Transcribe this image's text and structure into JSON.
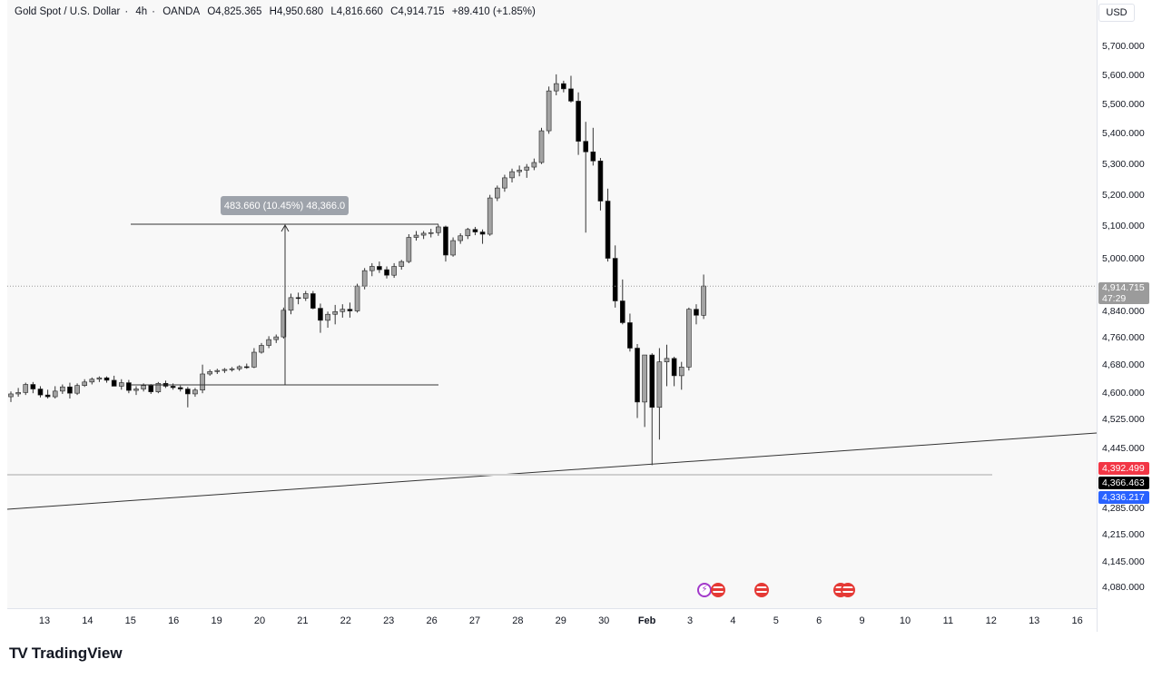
{
  "header": {
    "symbol": "Gold Spot / U.S. Dollar",
    "sep1": "·",
    "interval": "4h",
    "sep2": "·",
    "broker": "OANDA",
    "open": "O4,825.365",
    "high": "H4,950.680",
    "low": "L4,816.660",
    "close": "C4,914.715",
    "change": "+89.410 (+1.85%)"
  },
  "currency": "USD",
  "price_ticks": [
    "5,700.000",
    "5,600.000",
    "5,500.000",
    "5,400.000",
    "5,300.000",
    "5,200.000",
    "5,100.000",
    "5,000.000",
    "4,840.000",
    "4,760.000",
    "4,680.000",
    "4,600.000",
    "4,525.000",
    "4,445.000",
    "4,285.000",
    "4,215.000",
    "4,145.000",
    "4,080.000"
  ],
  "current_price": {
    "price": "4,914.715",
    "countdown": "47:29",
    "color": "#9b9b9b"
  },
  "level_badges": [
    {
      "label": "4,392.499",
      "color": "#f23645"
    },
    {
      "label": "4,366.463",
      "color": "#000000"
    },
    {
      "label": "4,336.217",
      "color": "#2962ff"
    }
  ],
  "time_ticks": [
    {
      "label": "13"
    },
    {
      "label": "14"
    },
    {
      "label": "15"
    },
    {
      "label": "16"
    },
    {
      "label": "19"
    },
    {
      "label": "20"
    },
    {
      "label": "21"
    },
    {
      "label": "22"
    },
    {
      "label": "23"
    },
    {
      "label": "26"
    },
    {
      "label": "27"
    },
    {
      "label": "28"
    },
    {
      "label": "29"
    },
    {
      "label": "30"
    },
    {
      "label": "Feb",
      "month": true
    },
    {
      "label": "3"
    },
    {
      "label": "4"
    },
    {
      "label": "5"
    },
    {
      "label": "6"
    },
    {
      "label": "9"
    },
    {
      "label": "10"
    },
    {
      "label": "11"
    },
    {
      "label": "12"
    },
    {
      "label": "13"
    },
    {
      "label": "16"
    }
  ],
  "measure": {
    "label": "483.660 (10.45%) 48,366.0"
  },
  "events": [
    {
      "icon": "lightning-event-icon"
    },
    {
      "icon": "us-flag-event-icon"
    },
    {
      "icon": "us-flag-event-icon"
    },
    {
      "icon": "us-flag-event-icon"
    },
    {
      "icon": "us-flag-event-icon"
    }
  ],
  "footer": {
    "brand": "TradingView"
  },
  "colors": {
    "up": "#a3a3a3",
    "down": "#000000",
    "wick": "#333333",
    "background": "#f8f8f8"
  },
  "chart_data": {
    "type": "candlestick",
    "title": "",
    "ylim": [
      4000,
      5800
    ],
    "y_scale": "log",
    "grid": false,
    "candles": [
      [
        4590,
        4605,
        4575,
        4598
      ],
      [
        4598,
        4615,
        4590,
        4602
      ],
      [
        4602,
        4630,
        4595,
        4625
      ],
      [
        4625,
        4632,
        4600,
        4612
      ],
      [
        4612,
        4620,
        4588,
        4595
      ],
      [
        4595,
        4610,
        4585,
        4590
      ],
      [
        4590,
        4620,
        4585,
        4606
      ],
      [
        4606,
        4625,
        4598,
        4618
      ],
      [
        4618,
        4630,
        4585,
        4600
      ],
      [
        4600,
        4628,
        4595,
        4622
      ],
      [
        4622,
        4640,
        4618,
        4632
      ],
      [
        4632,
        4645,
        4625,
        4640
      ],
      [
        4640,
        4648,
        4632,
        4644
      ],
      [
        4644,
        4648,
        4630,
        4637
      ],
      [
        4637,
        4650,
        4625,
        4620
      ],
      [
        4620,
        4640,
        4610,
        4630
      ],
      [
        4630,
        4638,
        4600,
        4608
      ],
      [
        4608,
        4620,
        4595,
        4612
      ],
      [
        4612,
        4628,
        4605,
        4622
      ],
      [
        4622,
        4626,
        4598,
        4604
      ],
      [
        4604,
        4632,
        4600,
        4628
      ],
      [
        4628,
        4636,
        4615,
        4620
      ],
      [
        4620,
        4628,
        4610,
        4616
      ],
      [
        4616,
        4622,
        4605,
        4612
      ],
      [
        4612,
        4618,
        4560,
        4598
      ],
      [
        4598,
        4615,
        4590,
        4609
      ],
      [
        4609,
        4682,
        4600,
        4655
      ],
      [
        4655,
        4668,
        4650,
        4662
      ],
      [
        4662,
        4670,
        4655,
        4665
      ],
      [
        4665,
        4672,
        4658,
        4668
      ],
      [
        4668,
        4675,
        4662,
        4670
      ],
      [
        4670,
        4680,
        4664,
        4676
      ],
      [
        4676,
        4685,
        4670,
        4675
      ],
      [
        4675,
        4730,
        4672,
        4718
      ],
      [
        4718,
        4745,
        4714,
        4738
      ],
      [
        4738,
        4765,
        4730,
        4755
      ],
      [
        4755,
        4770,
        4745,
        4763
      ],
      [
        4763,
        4850,
        4758,
        4842
      ],
      [
        4842,
        4892,
        4830,
        4880
      ],
      [
        4880,
        4895,
        4860,
        4878
      ],
      [
        4878,
        4900,
        4870,
        4892
      ],
      [
        4892,
        4900,
        4845,
        4848
      ],
      [
        4848,
        4862,
        4775,
        4812
      ],
      [
        4812,
        4838,
        4790,
        4830
      ],
      [
        4830,
        4858,
        4800,
        4838
      ],
      [
        4838,
        4860,
        4820,
        4845
      ],
      [
        4845,
        4865,
        4820,
        4840
      ],
      [
        4840,
        4922,
        4835,
        4915
      ],
      [
        4915,
        4970,
        4905,
        4962
      ],
      [
        4962,
        4985,
        4945,
        4975
      ],
      [
        4975,
        4990,
        4955,
        4965
      ],
      [
        4965,
        4975,
        4938,
        4948
      ],
      [
        4948,
        4985,
        4940,
        4975
      ],
      [
        4975,
        4995,
        4965,
        4990
      ],
      [
        4990,
        5075,
        4985,
        5065
      ],
      [
        5065,
        5085,
        5055,
        5072
      ],
      [
        5072,
        5085,
        5060,
        5078
      ],
      [
        5078,
        5092,
        5065,
        5080
      ],
      [
        5080,
        5105,
        5070,
        5098
      ],
      [
        5098,
        5102,
        4990,
        5010
      ],
      [
        5010,
        5065,
        5005,
        5055
      ],
      [
        5055,
        5078,
        5045,
        5070
      ],
      [
        5070,
        5095,
        5060,
        5090
      ],
      [
        5090,
        5098,
        5072,
        5082
      ],
      [
        5082,
        5090,
        5045,
        5075
      ],
      [
        5075,
        5200,
        5070,
        5190
      ],
      [
        5190,
        5230,
        5180,
        5222
      ],
      [
        5222,
        5265,
        5210,
        5255
      ],
      [
        5255,
        5285,
        5240,
        5275
      ],
      [
        5275,
        5295,
        5260,
        5280
      ],
      [
        5280,
        5300,
        5255,
        5290
      ],
      [
        5290,
        5318,
        5280,
        5305
      ],
      [
        5305,
        5420,
        5300,
        5410
      ],
      [
        5410,
        5560,
        5400,
        5545
      ],
      [
        5545,
        5602,
        5530,
        5570
      ],
      [
        5570,
        5580,
        5540,
        5552
      ],
      [
        5552,
        5597,
        5505,
        5510
      ],
      [
        5510,
        5540,
        5330,
        5375
      ],
      [
        5375,
        5440,
        5080,
        5340
      ],
      [
        5340,
        5420,
        5295,
        5310
      ],
      [
        5310,
        5320,
        5150,
        5180
      ],
      [
        5180,
        5220,
        4990,
        5000
      ],
      [
        5000,
        5040,
        4850,
        4870
      ],
      [
        4870,
        4935,
        4800,
        4805
      ],
      [
        4805,
        4832,
        4720,
        4730
      ],
      [
        4730,
        4742,
        4530,
        4575
      ],
      [
        4575,
        4700,
        4505,
        4710
      ],
      [
        4710,
        4715,
        4400,
        4560
      ],
      [
        4560,
        4730,
        4470,
        4690
      ],
      [
        4690,
        4740,
        4620,
        4700
      ],
      [
        4700,
        4705,
        4620,
        4650
      ],
      [
        4650,
        4690,
        4610,
        4675
      ],
      [
        4675,
        4850,
        4665,
        4845
      ],
      [
        4845,
        4860,
        4800,
        4827
      ],
      [
        4827,
        4950,
        4816,
        4915
      ]
    ],
    "annotations": [
      "483.660 (10.45%) 48,366.0",
      "4,392.499",
      "4,366.463",
      "4,336.217"
    ]
  }
}
